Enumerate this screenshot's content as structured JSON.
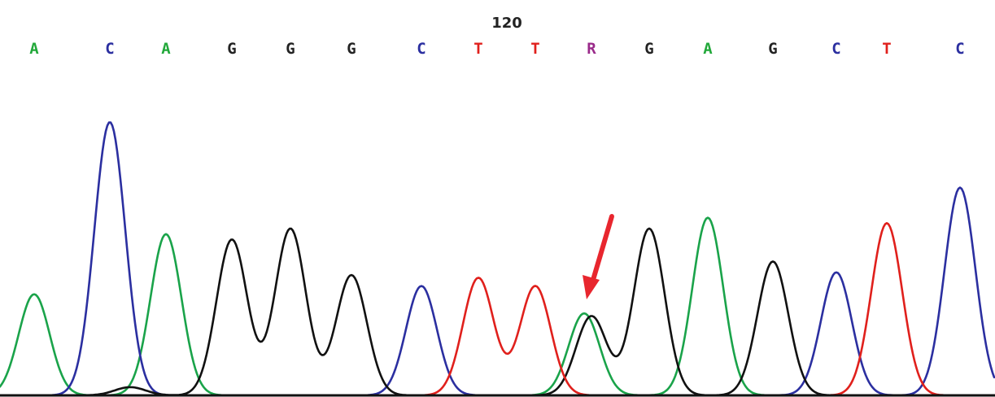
{
  "chart_data": {
    "type": "line",
    "title": "",
    "xlabel": "",
    "ylabel": "",
    "grid": false,
    "legend": "none",
    "position_marker": {
      "label": "120",
      "base_index": 8
    },
    "base_calls": [
      "A",
      "C",
      "A",
      "G",
      "G",
      "G",
      "C",
      "T",
      "T",
      "R",
      "G",
      "A",
      "G",
      "C",
      "T",
      "C"
    ],
    "base_colors": {
      "A": "#22a83a",
      "C": "#2b2fa0",
      "G": "#222222",
      "T": "#e0201c",
      "R": "#9a2a8a"
    },
    "y_range": [
      0,
      100
    ],
    "series": [
      {
        "base": "A",
        "color": "#1aa34a",
        "peaks": [
          {
            "x": 42,
            "h": 37
          },
          {
            "x": 204,
            "h": 59
          },
          {
            "x": 718,
            "h": 30
          },
          {
            "x": 870,
            "h": 65
          }
        ]
      },
      {
        "base": "C",
        "color": "#2b2fa0",
        "peaks": [
          {
            "x": 135,
            "h": 100
          },
          {
            "x": 518,
            "h": 40
          },
          {
            "x": 1028,
            "h": 45
          },
          {
            "x": 1180,
            "h": 76
          }
        ]
      },
      {
        "base": "G",
        "color": "#111111",
        "peaks": [
          {
            "x": 160,
            "h": 3
          },
          {
            "x": 285,
            "h": 57
          },
          {
            "x": 357,
            "h": 61
          },
          {
            "x": 432,
            "h": 44
          },
          {
            "x": 727,
            "h": 29
          },
          {
            "x": 798,
            "h": 61
          },
          {
            "x": 950,
            "h": 49
          }
        ]
      },
      {
        "base": "T",
        "color": "#e0201c",
        "peaks": [
          {
            "x": 588,
            "h": 43
          },
          {
            "x": 658,
            "h": 40
          },
          {
            "x": 1090,
            "h": 63
          }
        ]
      }
    ],
    "annotations": [
      {
        "type": "arrow",
        "color": "#e8262e",
        "target_base_index": 9
      }
    ]
  }
}
